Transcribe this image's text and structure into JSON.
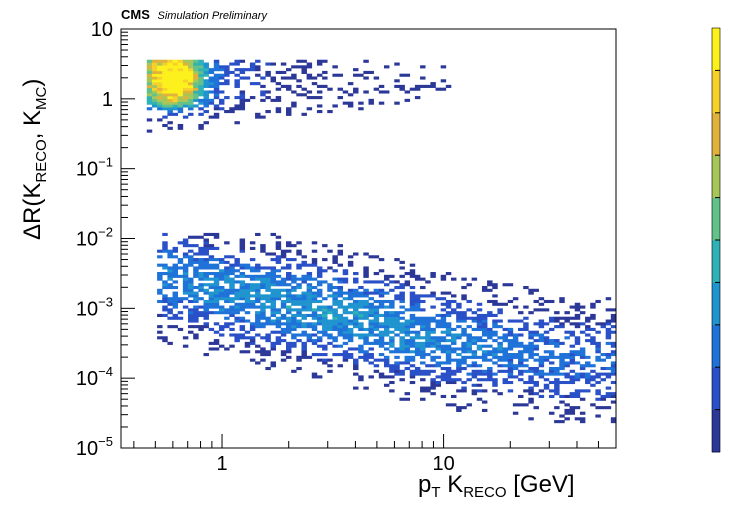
{
  "banner": {
    "experiment": "CMS",
    "status": "Simulation Preliminary"
  },
  "chart_data": {
    "type": "heatmap",
    "title": "",
    "xlabel": {
      "main": "p",
      "sub": "T",
      "rest": "K",
      "rest_sub": "RECO",
      "unit": "[GeV]"
    },
    "ylabel": {
      "text": "ΔR(K",
      "sub1": "RECO",
      "mid": ", K",
      "sub2": "MC",
      "close": ")"
    },
    "x_scale": "log",
    "y_scale": "log",
    "xlim": [
      0.35,
      60
    ],
    "ylim": [
      1e-05,
      10
    ],
    "x_tick_labels": [
      {
        "value": 1,
        "label": "1"
      },
      {
        "value": 10,
        "label": "10"
      }
    ],
    "y_tick_labels": [
      {
        "value": 10,
        "base": "10",
        "exp": ""
      },
      {
        "value": 1,
        "base": "1",
        "exp": ""
      },
      {
        "value": 0.1,
        "base": "10",
        "exp": "−1"
      },
      {
        "value": 0.01,
        "base": "10",
        "exp": "−2"
      },
      {
        "value": 0.001,
        "base": "10",
        "exp": "−3"
      },
      {
        "value": 0.0001,
        "base": "10",
        "exp": "−4"
      },
      {
        "value": 1e-05,
        "base": "10",
        "exp": "−5"
      }
    ],
    "colormap": [
      "#2c3898",
      "#2a50c8",
      "#1f73d8",
      "#2094cf",
      "#2fb1b5",
      "#62c28a",
      "#a6c65a",
      "#e0b23c",
      "#f6d02b",
      "#fcf11c"
    ],
    "colorbar_labels": [],
    "populations": [
      {
        "name_hint": "upper band (mis-matched)",
        "x_range": [
          0.45,
          60
        ],
        "y_range": [
          0.02,
          3.8
        ],
        "peak": {
          "x": 0.6,
          "y": 2.0
        },
        "max_relative_density": 1.0
      },
      {
        "name_hint": "lower band (matched)",
        "x_range": [
          0.5,
          60
        ],
        "y_range": [
          1e-05,
          0.012
        ],
        "trend": [
          {
            "x": 0.55,
            "y": 0.003
          },
          {
            "x": 1,
            "y": 0.0018
          },
          {
            "x": 3,
            "y": 0.0009
          },
          {
            "x": 10,
            "y": 0.00035
          },
          {
            "x": 40,
            "y": 0.00018
          }
        ],
        "max_relative_density": 0.35
      }
    ],
    "grid": false,
    "legend": "none"
  }
}
